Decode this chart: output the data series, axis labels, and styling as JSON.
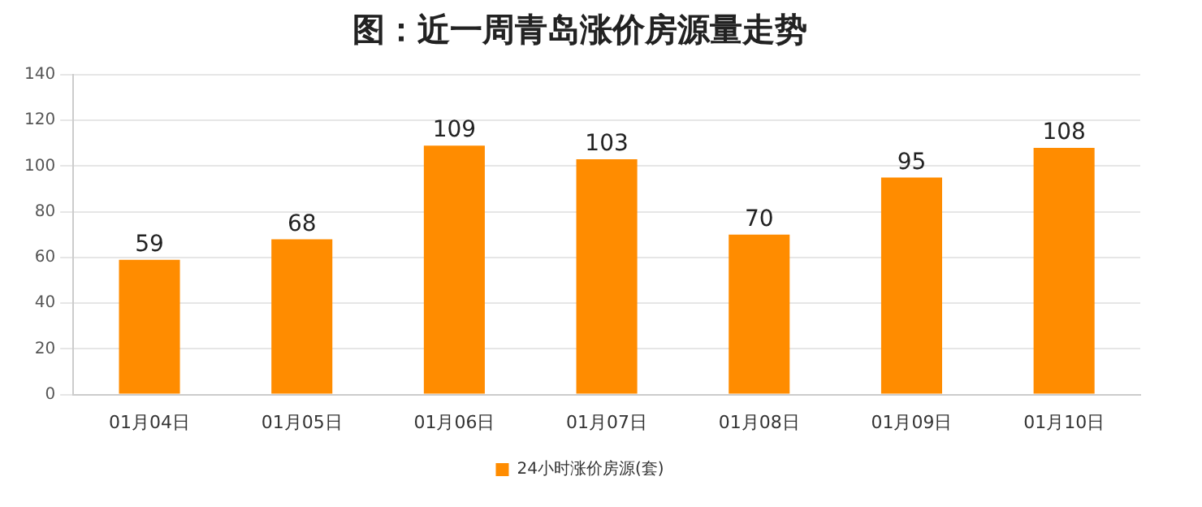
{
  "chart_data": {
    "type": "bar",
    "title": "图：近一周青岛涨价房源量走势",
    "categories": [
      "01月04日",
      "01月05日",
      "01月06日",
      "01月07日",
      "01月08日",
      "01月09日",
      "01月10日"
    ],
    "series": [
      {
        "name": "24小时涨价房源(套)",
        "color": "#ff8c00",
        "values": [
          59,
          68,
          109,
          103,
          70,
          95,
          108
        ]
      }
    ],
    "ylim": [
      0,
      140
    ],
    "yticks": [
      0,
      20,
      40,
      60,
      80,
      100,
      120,
      140
    ],
    "grid": "y",
    "legend": "bottom",
    "data_labels": true
  }
}
